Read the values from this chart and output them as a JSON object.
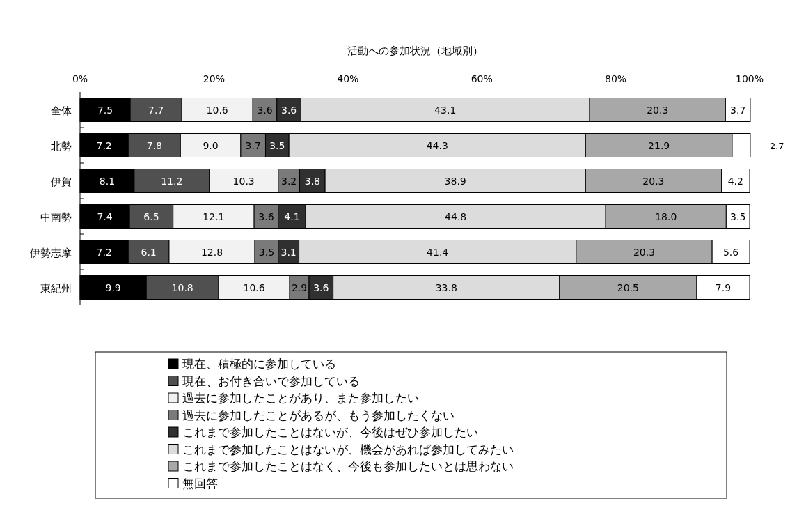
{
  "chart_data": {
    "type": "bar",
    "orientation": "horizontal",
    "stacked": true,
    "title": "活動への参加状況（地域別）",
    "categories": [
      "全体",
      "北勢",
      "伊賀",
      "中南勢",
      "伊勢志摩",
      "東紀州"
    ],
    "xlim": [
      0,
      100
    ],
    "xticks": [
      {
        "value": 0,
        "label": "0%"
      },
      {
        "value": 20,
        "label": "20%"
      },
      {
        "value": 40,
        "label": "40%"
      },
      {
        "value": 60,
        "label": "60%"
      },
      {
        "value": 80,
        "label": "80%"
      },
      {
        "value": 100,
        "label": "100%"
      }
    ],
    "legend": "bottom",
    "series": [
      {
        "name": "現在、積極的に参加している",
        "color": "#000000",
        "values": [
          7.5,
          7.2,
          8.1,
          7.4,
          7.2,
          9.9
        ],
        "value_labels": [
          "7.5",
          "7.2",
          "8.1",
          "7.4",
          "7.2",
          "9.9"
        ]
      },
      {
        "name": "現在、お付き合いで参加している",
        "color": "#505050",
        "values": [
          7.7,
          7.8,
          11.2,
          6.5,
          6.1,
          10.8
        ],
        "value_labels": [
          "7.7",
          "7.8",
          "11.2",
          "6.5",
          "6.1",
          "10.8"
        ]
      },
      {
        "name": "過去に参加したことがあり、また参加したい",
        "color": "#f2f2f2",
        "values": [
          10.6,
          9.0,
          10.3,
          12.1,
          12.8,
          10.6
        ],
        "value_labels": [
          "10.6",
          "9.0",
          "10.3",
          "12.1",
          "12.8",
          "10.6"
        ]
      },
      {
        "name": "過去に参加したことがあるが、もう参加したくない",
        "color": "#7a7a7a",
        "values": [
          3.6,
          3.7,
          3.2,
          3.6,
          3.5,
          2.9
        ],
        "value_labels": [
          "3.6",
          "3.7",
          "3.2",
          "3.6",
          "3.5",
          "2.9"
        ]
      },
      {
        "name": "これまで参加したことはないが、今後はぜひ参加したい",
        "color": "#303030",
        "values": [
          3.6,
          3.5,
          3.8,
          4.1,
          3.1,
          3.6
        ],
        "value_labels": [
          "3.6",
          "3.5",
          "3.8",
          "4.1",
          "3.1",
          "3.6"
        ]
      },
      {
        "name": "これまで参加したことはないが、機会があれば参加してみたい",
        "color": "#dcdcdc",
        "values": [
          43.1,
          44.3,
          38.9,
          44.8,
          41.4,
          33.8
        ],
        "value_labels": [
          "43.1",
          "44.3",
          "38.9",
          "44.8",
          "41.4",
          "33.8"
        ]
      },
      {
        "name": "これまで参加したことはなく、今後も参加したいとは思わない",
        "color": "#a8a8a8",
        "values": [
          20.3,
          21.9,
          20.3,
          18.0,
          20.3,
          20.5
        ],
        "value_labels": [
          "20.3",
          "21.9",
          "20.3",
          "18.0",
          "20.3",
          "20.5"
        ]
      },
      {
        "name": "無回答",
        "color": "#ffffff",
        "values": [
          3.7,
          2.7,
          4.2,
          3.5,
          5.6,
          7.9
        ],
        "value_labels": [
          "3.7",
          "2.7",
          "4.2",
          "3.5",
          "5.6",
          "7.9"
        ]
      }
    ]
  }
}
